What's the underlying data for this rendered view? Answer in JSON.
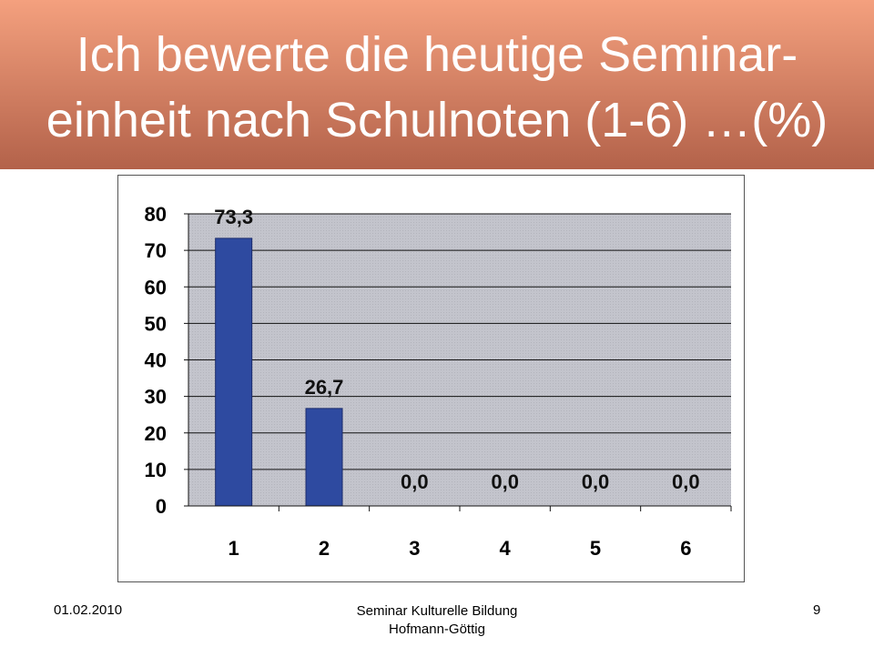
{
  "header": {
    "title_line_1": "Ich bewerte die heutige Seminar-",
    "title_line_2": "einheit nach Schulnoten (1-6) …(%)",
    "gradient_top": "#f4a07e",
    "gradient_bottom": "#b3624a"
  },
  "chart_data": {
    "type": "bar",
    "categories": [
      "1",
      "2",
      "3",
      "4",
      "5",
      "6"
    ],
    "series": [
      {
        "values": [
          73.3,
          26.7,
          0.0,
          0.0,
          0.0,
          0.0
        ]
      }
    ],
    "data_labels": [
      "73,3",
      "26,7",
      "0,0",
      "0,0",
      "0,0",
      "0,0"
    ],
    "y_ticks": [
      "0",
      "10",
      "20",
      "30",
      "40",
      "50",
      "60",
      "70",
      "80"
    ],
    "ylim": [
      0,
      80
    ],
    "grid": true,
    "bar_color": "#2e4aa0",
    "plot_background": "#c0c0c8"
  },
  "footer": {
    "date": "01.02.2010",
    "center_line_1": "Seminar Kulturelle Bildung",
    "center_line_2": "Hofmann-Göttig",
    "page_number": "9"
  }
}
